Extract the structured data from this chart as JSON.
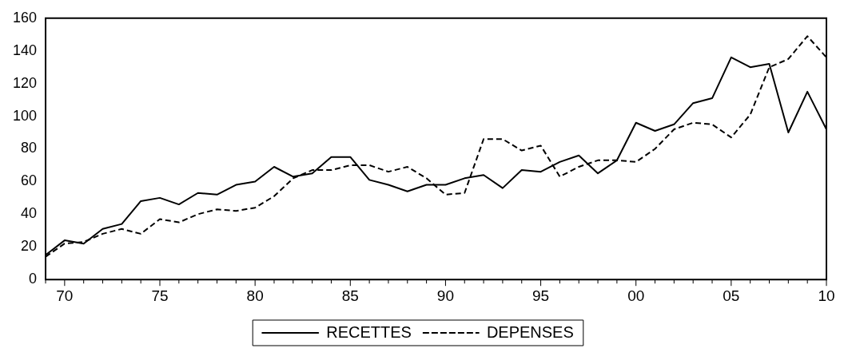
{
  "chart_data": {
    "type": "line",
    "categories": [
      null,
      "70",
      null,
      null,
      null,
      null,
      "75",
      null,
      null,
      null,
      null,
      "80",
      null,
      null,
      null,
      null,
      "85",
      null,
      null,
      null,
      null,
      "90",
      null,
      null,
      null,
      null,
      "95",
      null,
      null,
      null,
      null,
      "00",
      null,
      null,
      null,
      null,
      "05",
      null,
      null,
      null,
      null,
      "10"
    ],
    "series": [
      {
        "name": "RECETTES",
        "color": "#000000",
        "line_style": "solid",
        "values": [
          15,
          24,
          22,
          31,
          34,
          48,
          50,
          46,
          53,
          52,
          58,
          60,
          69,
          63,
          65,
          75,
          75,
          61,
          58,
          54,
          58,
          58,
          62,
          64,
          56,
          67,
          66,
          72,
          76,
          65,
          73,
          96,
          91,
          95,
          108,
          111,
          136,
          130,
          132,
          90,
          115,
          92
        ]
      },
      {
        "name": "DEPENSES",
        "color": "#000000",
        "line_style": "dashed",
        "values": [
          14,
          22,
          23,
          28,
          31,
          28,
          37,
          35,
          40,
          43,
          42,
          44,
          51,
          62,
          67,
          67,
          70,
          70,
          66,
          69,
          62,
          52,
          53,
          86,
          86,
          79,
          82,
          63,
          69,
          73,
          73,
          72,
          80,
          92,
          96,
          95,
          87,
          101,
          130,
          135,
          149,
          136
        ]
      }
    ],
    "ylim": [
      0,
      160
    ],
    "yticks": [
      0,
      20,
      40,
      60,
      80,
      100,
      120,
      140,
      160
    ],
    "grid": false,
    "legend": "bottom",
    "marker": "none"
  }
}
